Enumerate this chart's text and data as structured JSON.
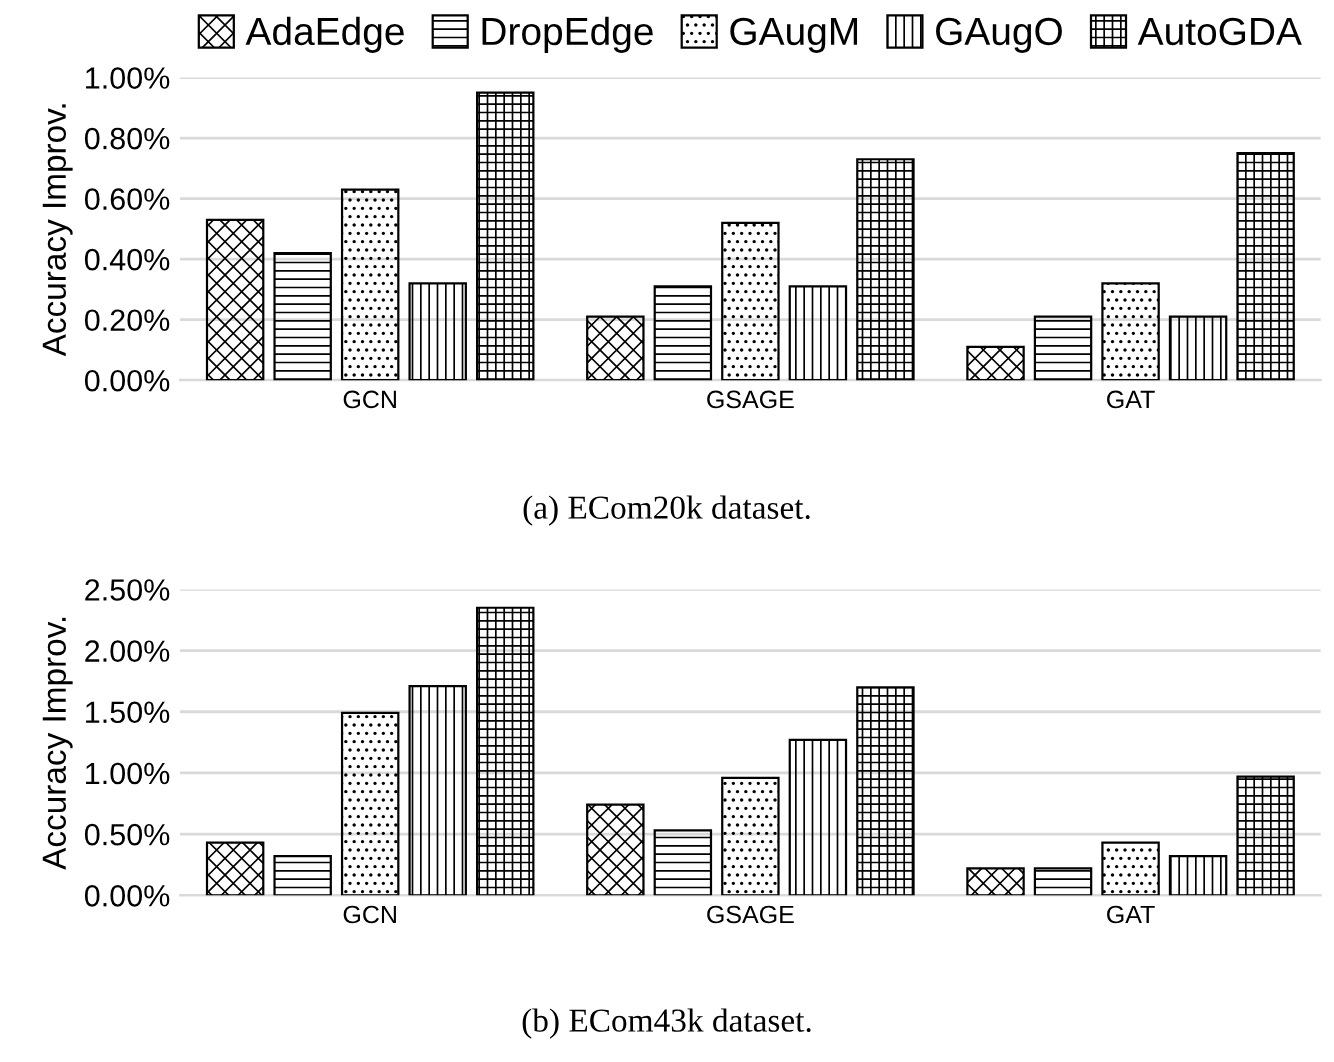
{
  "chart_data": [
    {
      "type": "bar",
      "categories": [
        "GCN",
        "GSAGE",
        "GAT"
      ],
      "ylabel": "Accuracy Improv.",
      "series": [
        {
          "name": "AdaEdge",
          "color": "#000000",
          "values": [
            0.53,
            0.21,
            0.11
          ]
        },
        {
          "name": "DropEdge",
          "color": "#000000",
          "values": [
            0.42,
            0.31,
            0.21
          ]
        },
        {
          "name": "GAugM",
          "color": "#000000",
          "values": [
            0.63,
            0.52,
            0.32
          ]
        },
        {
          "name": "GAugO",
          "color": "#000000",
          "values": [
            0.32,
            0.31,
            0.21
          ]
        },
        {
          "name": "AutoGDA",
          "color": "#000000",
          "values": [
            0.95,
            0.73,
            0.75
          ]
        }
      ],
      "ylim": [
        0,
        1.0
      ],
      "yticks": [
        {
          "value": 0,
          "label": "0.00%"
        },
        {
          "value": 0.2,
          "label": "0.20%"
        },
        {
          "value": 0.4,
          "label": "0.40%"
        },
        {
          "value": 0.6,
          "label": "0.60%"
        },
        {
          "value": 0.8,
          "label": "0.80%"
        },
        {
          "value": 1.0,
          "label": "1.00%"
        }
      ],
      "grid": "y",
      "legend": "top",
      "annotations": [
        "(a) ECom20k dataset."
      ]
    },
    {
      "type": "bar",
      "categories": [
        "GCN",
        "GSAGE",
        "GAT"
      ],
      "ylabel": "Accuracy Improv.",
      "series": [
        {
          "color": "#000000",
          "values": [
            0.43,
            0.74,
            0.22
          ]
        },
        {
          "color": "#000000",
          "values": [
            0.32,
            0.53,
            0.22
          ]
        },
        {
          "color": "#000000",
          "values": [
            1.49,
            0.96,
            0.43
          ]
        },
        {
          "color": "#000000",
          "values": [
            1.71,
            1.27,
            0.32
          ]
        },
        {
          "color": "#000000",
          "values": [
            2.35,
            1.7,
            0.97
          ]
        }
      ],
      "ylim": [
        0,
        2.5
      ],
      "yticks": [
        {
          "value": 0,
          "label": "0.00%"
        },
        {
          "value": 0.5,
          "label": "0.50%"
        },
        {
          "value": 1.0,
          "label": "1.00%"
        },
        {
          "value": 1.5,
          "label": "1.50%"
        },
        {
          "value": 2.0,
          "label": "2.00%"
        },
        {
          "value": 2.5,
          "label": "2.50%"
        }
      ],
      "grid": "y",
      "annotations": [
        "(b) ECom43k dataset."
      ]
    }
  ]
}
